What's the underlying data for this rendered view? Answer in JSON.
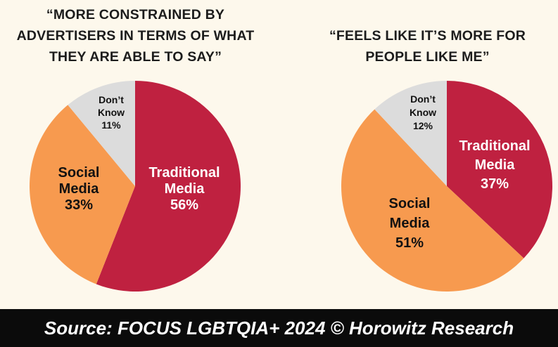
{
  "colors": {
    "background": "#fdf8ec",
    "traditional": "#bf2140",
    "social": "#f79a4f",
    "dont_know": "#dcdcdc",
    "footer_bg": "#0b0b0b"
  },
  "chart_data": [
    {
      "type": "pie",
      "title": "“MORE CONSTRAINED BY ADVERTISERS IN TERMS OF WHAT THEY ARE ABLE TO SAY”",
      "slices": [
        {
          "label_lines": [
            "Traditional",
            "Media"
          ],
          "value": 56,
          "value_text": "56%",
          "color": "#bf2140",
          "text_color": "#ffffff"
        },
        {
          "label_lines": [
            "Social",
            "Media"
          ],
          "value": 33,
          "value_text": "33%",
          "color": "#f79a4f",
          "text_color": "#111111"
        },
        {
          "label_lines": [
            "Don’t",
            "Know"
          ],
          "value": 11,
          "value_text": "11%",
          "color": "#dcdcdc",
          "text_color": "#111111"
        }
      ]
    },
    {
      "type": "pie",
      "title": "“FEELS LIKE IT’S MORE FOR PEOPLE LIKE ME”",
      "slices": [
        {
          "label_lines": [
            "Traditional",
            "Media"
          ],
          "value": 37,
          "value_text": "37%",
          "color": "#bf2140",
          "text_color": "#ffffff"
        },
        {
          "label_lines": [
            "Social",
            "Media"
          ],
          "value": 51,
          "value_text": "51%",
          "color": "#f79a4f",
          "text_color": "#111111"
        },
        {
          "label_lines": [
            "Don’t",
            "Know"
          ],
          "value": 12,
          "value_text": "12%",
          "color": "#dcdcdc",
          "text_color": "#111111"
        }
      ]
    }
  ],
  "footer": {
    "source": "Source: FOCUS LGBTQIA+ 2024 © Horowitz Research"
  }
}
